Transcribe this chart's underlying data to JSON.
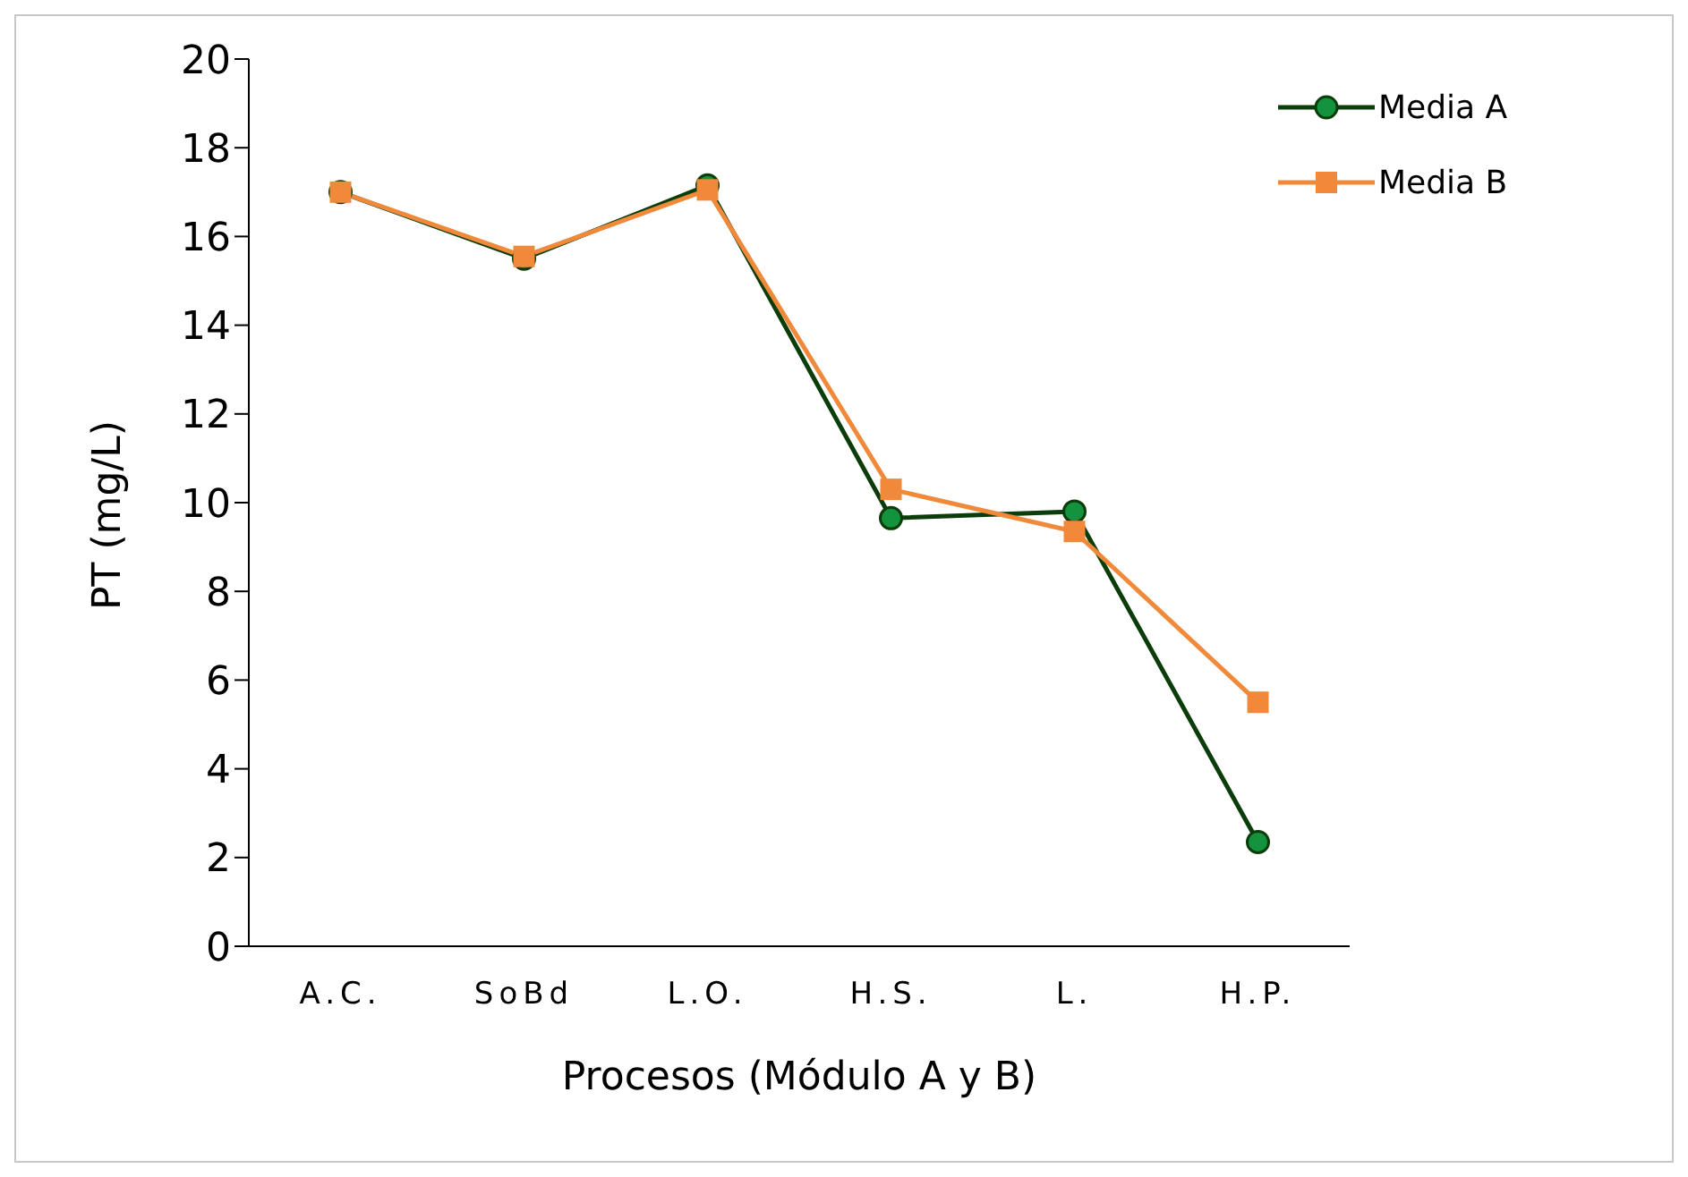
{
  "chart_data": {
    "type": "line",
    "xlabel": "Procesos (Módulo A y B)",
    "ylabel": "PT  (mg/L)",
    "categories": [
      "A.C.",
      "SoBd",
      "L.O.",
      "H.S.",
      "L.",
      "H.P."
    ],
    "series": [
      {
        "name": "Media A",
        "color": "#13933d",
        "marker": "circle",
        "values": [
          17.0,
          15.5,
          17.15,
          9.65,
          9.8,
          2.35
        ]
      },
      {
        "name": "Media B",
        "color": "#f08a3a",
        "marker": "square",
        "values": [
          17.0,
          15.55,
          17.05,
          10.3,
          9.35,
          5.5
        ]
      }
    ],
    "ylim": [
      0,
      20
    ],
    "yticks": [
      0,
      2,
      4,
      6,
      8,
      10,
      12,
      14,
      16,
      18,
      20
    ],
    "grid": false,
    "legend": "top right",
    "line_style": "solid"
  }
}
